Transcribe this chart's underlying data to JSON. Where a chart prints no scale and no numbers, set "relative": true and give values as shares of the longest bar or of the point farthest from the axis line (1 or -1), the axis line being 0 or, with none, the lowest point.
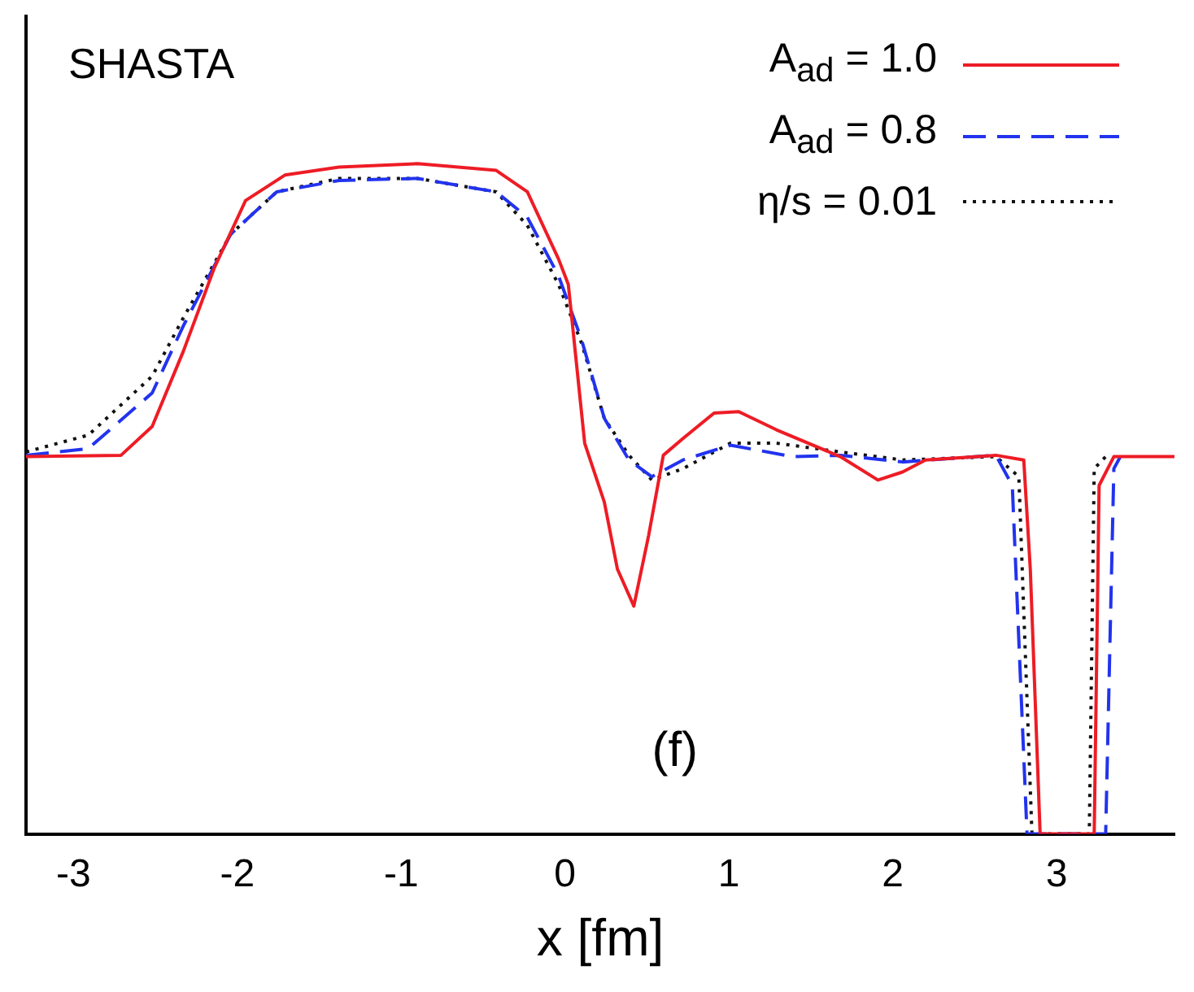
{
  "chart_data": {
    "type": "line",
    "relative": true,
    "xlabel": "x [fm]",
    "xlim": [
      -3.29,
      3.72
    ],
    "xticks": [
      -3,
      -2,
      -1,
      0,
      1,
      2,
      3
    ],
    "grid": false,
    "legend": "top right",
    "marker": "none",
    "tick_labels": "x",
    "annotations": [
      "SHASTA",
      "(f)"
    ],
    "series": [
      {
        "name": "A$_{ad}$ = 1.0",
        "color": "#ee1c25",
        "line_style": "solid",
        "x": [
          -3.29,
          -2.71,
          -2.52,
          -2.33,
          -2.14,
          -1.95,
          -1.71,
          -1.38,
          -0.9,
          -0.42,
          -0.23,
          -0.04,
          0.02,
          0.12,
          0.24,
          0.32,
          0.42,
          0.51,
          0.6,
          0.72,
          0.91,
          1.06,
          1.29,
          1.68,
          1.91,
          2.06,
          2.2,
          2.63,
          2.8,
          2.84,
          2.9,
          3.23,
          3.26,
          3.35,
          3.72
        ],
        "values": [
          0.563,
          0.565,
          0.608,
          0.72,
          0.845,
          0.945,
          0.983,
          0.995,
          1,
          0.99,
          0.958,
          0.858,
          0.82,
          0.583,
          0.495,
          0.395,
          0.34,
          0.445,
          0.565,
          0.59,
          0.628,
          0.63,
          0.603,
          0.563,
          0.528,
          0.54,
          0.558,
          0.565,
          0.558,
          0.395,
          0,
          0,
          0.52,
          0.563,
          0.563
        ]
      },
      {
        "name": "A$_{ad}$ = 0.8",
        "color": "#2233ee",
        "line_style": "dashed",
        "x": [
          -3.29,
          -2.91,
          -2.52,
          -2.33,
          -2.04,
          -1.76,
          -1.38,
          -0.9,
          -0.42,
          -0.23,
          -0.04,
          0.1,
          0.24,
          0.39,
          0.53,
          0.72,
          1.01,
          1.39,
          1.68,
          2.06,
          2.63,
          2.73,
          2.82,
          3.3,
          3.35,
          3.39
        ],
        "values": [
          0.565,
          0.575,
          0.658,
          0.758,
          0.895,
          0.958,
          0.975,
          0.978,
          0.958,
          0.92,
          0.833,
          0.738,
          0.62,
          0.558,
          0.533,
          0.558,
          0.58,
          0.563,
          0.565,
          0.555,
          0.565,
          0.52,
          0,
          0,
          0.545,
          0.563
        ]
      },
      {
        "name": "η/s = 0.01",
        "color": "#111111",
        "line_style": "dotted",
        "x": [
          -3.29,
          -2.91,
          -2.52,
          -2.33,
          -2.04,
          -1.76,
          -1.38,
          -0.9,
          -0.42,
          -0.23,
          -0.04,
          0.1,
          0.24,
          0.39,
          0.53,
          0.72,
          1.01,
          1.29,
          1.68,
          2.06,
          2.63,
          2.77,
          2.85,
          3.2,
          3.23,
          3.3
        ],
        "values": [
          0.57,
          0.595,
          0.683,
          0.77,
          0.895,
          0.958,
          0.978,
          0.978,
          0.958,
          0.908,
          0.82,
          0.733,
          0.62,
          0.565,
          0.528,
          0.545,
          0.583,
          0.583,
          0.57,
          0.558,
          0.563,
          0.533,
          0,
          0,
          0.545,
          0.563
        ]
      }
    ]
  }
}
